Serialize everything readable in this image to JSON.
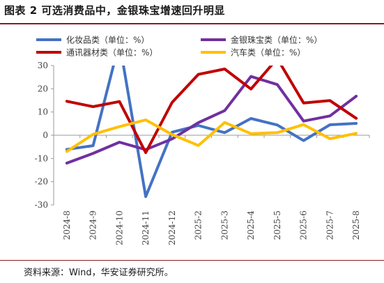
{
  "title": "图表 2 可选消费品中，金银珠宝增速回升明显",
  "source": "资料来源：Wind，华安证券研究所。",
  "chart_data": {
    "type": "line",
    "categories": [
      "2024-8",
      "2024-9",
      "2024-10",
      "2024-11",
      "2024-12",
      "2025-2",
      "2025-3",
      "2025-4",
      "2025-5",
      "2025-6",
      "2025-7",
      "2025-8"
    ],
    "ylim": [
      -30,
      30
    ],
    "yticks": [
      -30,
      -20,
      -10,
      0,
      10,
      20,
      30
    ],
    "grid": false,
    "legend_position": "top",
    "series": [
      {
        "name": "化妆品类（单位：%）",
        "color": "#4472C4",
        "values": [
          -6.1,
          -4.5,
          40.1,
          -26.4,
          1.3,
          4.2,
          1.1,
          7.2,
          4.4,
          -2.3,
          4.5,
          5.1
        ]
      },
      {
        "name": "金银珠宝类（单位：%）",
        "color": "#7030A0",
        "values": [
          -12.0,
          -7.8,
          -3.0,
          -6.2,
          -1.6,
          5.4,
          10.6,
          25.3,
          21.8,
          6.1,
          8.3,
          16.8
        ]
      },
      {
        "name": "通讯器材类（单位：%）",
        "color": "#C00000",
        "values": [
          14.6,
          12.3,
          14.5,
          -7.5,
          14.1,
          26.2,
          28.5,
          19.9,
          33.0,
          13.9,
          14.9,
          7.3
        ]
      },
      {
        "name": "汽车类（单位：%）",
        "color": "#FFC000",
        "values": [
          -7.0,
          0.4,
          3.7,
          6.6,
          0.3,
          -4.4,
          5.5,
          0.7,
          1.1,
          4.6,
          -1.5,
          0.8
        ]
      }
    ]
  }
}
